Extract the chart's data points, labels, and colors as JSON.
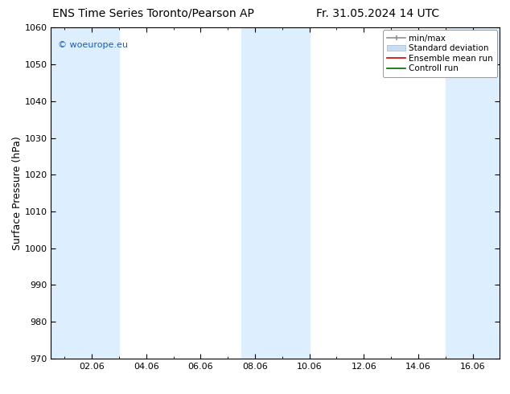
{
  "title_left": "ENS Time Series Toronto/Pearson AP",
  "title_right": "Fr. 31.05.2024 14 UTC",
  "ylabel": "Surface Pressure (hPa)",
  "ylim": [
    970,
    1060
  ],
  "yticks": [
    970,
    980,
    990,
    1000,
    1010,
    1020,
    1030,
    1040,
    1050,
    1060
  ],
  "xtick_labels": [
    "02.06",
    "04.06",
    "06.06",
    "08.06",
    "10.06",
    "12.06",
    "14.06",
    "16.06"
  ],
  "xtick_positions": [
    2,
    4,
    6,
    8,
    10,
    12,
    14,
    16
  ],
  "xlim": [
    0.5,
    17.0
  ],
  "shaded_regions": [
    {
      "xmin": 0.5,
      "xmax": 3.0
    },
    {
      "xmin": 7.5,
      "xmax": 10.0
    },
    {
      "xmin": 15.0,
      "xmax": 17.0
    }
  ],
  "shade_color": "#ddeeff",
  "background_color": "#ffffff",
  "watermark_text": "© woeurope.eu",
  "watermark_color": "#1a5fb4",
  "title_fontsize": 10,
  "tick_fontsize": 8,
  "ylabel_fontsize": 9,
  "legend_fontsize": 7.5
}
